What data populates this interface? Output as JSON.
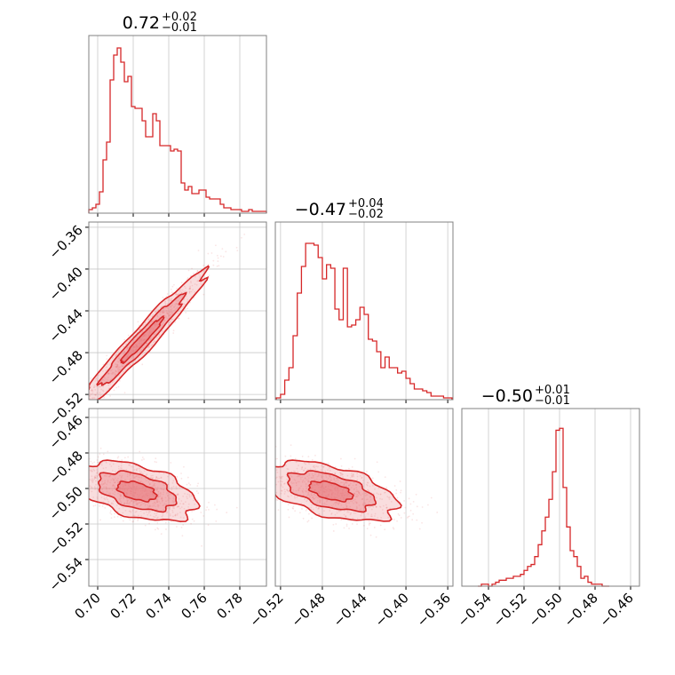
{
  "figure": {
    "background": "#ffffff"
  },
  "colors": {
    "series": "#d62728",
    "fill": "#e8767a",
    "grid": "#c8c8c8",
    "frame": "#808080"
  },
  "chart_data": [
    {
      "type": "histogram",
      "panel": "hist-p1",
      "title": {
        "base": "0.72",
        "upper": "+0.02",
        "lower": "−0.01"
      },
      "xlim": [
        0.695,
        0.795
      ],
      "xticks": [
        0.7,
        0.72,
        0.74,
        0.76,
        0.78
      ],
      "bins": [
        0.696,
        0.698,
        0.7,
        0.702,
        0.704,
        0.706,
        0.708,
        0.71,
        0.712,
        0.714,
        0.716,
        0.718,
        0.72,
        0.722,
        0.724,
        0.726,
        0.728,
        0.73,
        0.732,
        0.734,
        0.736,
        0.738,
        0.74,
        0.742,
        0.744,
        0.746,
        0.748,
        0.75,
        0.752,
        0.754,
        0.756,
        0.758,
        0.76,
        0.762,
        0.764,
        0.766,
        0.768,
        0.77,
        0.772,
        0.774,
        0.776,
        0.778,
        0.78,
        0.782,
        0.784,
        0.786,
        0.788,
        0.79,
        0.792,
        0.794
      ],
      "counts": [
        2,
        3,
        5,
        12,
        30,
        40,
        75,
        89,
        93,
        85,
        74,
        77,
        60,
        59,
        59,
        52,
        43,
        43,
        56,
        52,
        38,
        38,
        38,
        35,
        36,
        35,
        17,
        13,
        15,
        11,
        11,
        13,
        13,
        9,
        8,
        8,
        8,
        5,
        3,
        3,
        2,
        2,
        2,
        1,
        1,
        2,
        1,
        1,
        1,
        1
      ],
      "ylim": [
        0,
        100
      ]
    },
    {
      "type": "histogram",
      "panel": "hist-p2",
      "title": {
        "base": "−0.47",
        "upper": "+0.04",
        "lower": "−0.02"
      },
      "xlim": [
        -0.525,
        -0.355
      ],
      "xticks": [
        -0.52,
        -0.48,
        -0.44,
        -0.4,
        -0.36
      ],
      "bins": [
        -0.522,
        -0.518,
        -0.514,
        -0.51,
        -0.506,
        -0.502,
        -0.498,
        -0.494,
        -0.49,
        -0.486,
        -0.482,
        -0.478,
        -0.474,
        -0.47,
        -0.466,
        -0.462,
        -0.458,
        -0.454,
        -0.45,
        -0.446,
        -0.442,
        -0.438,
        -0.434,
        -0.43,
        -0.426,
        -0.422,
        -0.418,
        -0.414,
        -0.41,
        -0.406,
        -0.402,
        -0.398,
        -0.394,
        -0.39,
        -0.386,
        -0.382,
        -0.378,
        -0.374,
        -0.37,
        -0.366,
        -0.362,
        -0.358
      ],
      "counts": [
        1,
        3,
        11,
        18,
        36,
        60,
        75,
        88,
        88,
        87,
        80,
        68,
        76,
        74,
        51,
        45,
        74,
        41,
        42,
        45,
        52,
        48,
        34,
        33,
        27,
        18,
        24,
        18,
        18,
        15,
        16,
        12,
        9,
        6,
        6,
        5,
        4,
        2,
        2,
        2,
        1,
        1
      ],
      "ylim": [
        0,
        100
      ]
    },
    {
      "type": "histogram",
      "panel": "hist-p3",
      "title": {
        "base": "−0.50",
        "upper": "+0.01",
        "lower": "−0.01"
      },
      "xlim": [
        -0.555,
        -0.455
      ],
      "xticks": [
        -0.54,
        -0.52,
        -0.5,
        -0.48,
        -0.46
      ],
      "bins": [
        -0.545,
        -0.543,
        -0.541,
        -0.539,
        -0.537,
        -0.535,
        -0.533,
        -0.531,
        -0.529,
        -0.527,
        -0.525,
        -0.523,
        -0.521,
        -0.519,
        -0.517,
        -0.515,
        -0.513,
        -0.511,
        -0.509,
        -0.507,
        -0.505,
        -0.503,
        -0.501,
        -0.499,
        -0.497,
        -0.495,
        -0.493,
        -0.491,
        -0.489,
        -0.487,
        -0.485,
        -0.483,
        -0.481,
        -0.479,
        -0.477,
        -0.475,
        -0.473
      ],
      "counts": [
        0,
        1,
        1,
        0,
        1,
        2,
        3,
        3,
        4,
        4,
        5,
        5,
        6,
        8,
        10,
        11,
        15,
        21,
        28,
        35,
        44,
        58,
        79,
        80,
        50,
        30,
        18,
        15,
        10,
        4,
        5,
        2,
        1,
        1,
        1,
        0,
        0
      ],
      "ylim": [
        0,
        90
      ]
    },
    {
      "type": "contour",
      "panel": "p1-p2",
      "xlim": [
        0.695,
        0.795
      ],
      "ylim": [
        -0.525,
        -0.355
      ],
      "xticks": [
        0.7,
        0.72,
        0.74,
        0.76,
        0.78
      ],
      "yticks": [
        -0.36,
        -0.4,
        -0.44,
        -0.48,
        -0.52
      ],
      "density": {
        "mean": [
          0.725,
          -0.468
        ],
        "sd": [
          0.012,
          0.022
        ],
        "corr": 0.97
      },
      "contour_levels": [
        0.39,
        0.86,
        0.99
      ]
    },
    {
      "type": "contour",
      "panel": "p1-p3",
      "xlim": [
        0.695,
        0.795
      ],
      "ylim": [
        -0.555,
        -0.455
      ],
      "xticks": [
        0.7,
        0.72,
        0.74,
        0.76,
        0.78
      ],
      "yticks": [
        -0.46,
        -0.48,
        -0.5,
        -0.52,
        -0.54
      ],
      "density": {
        "mean": [
          0.722,
          -0.5015
        ],
        "sd": [
          0.011,
          0.0055
        ],
        "corr": -0.45
      },
      "contour_levels": [
        0.39,
        0.86,
        0.99
      ]
    },
    {
      "type": "contour",
      "panel": "p2-p3",
      "xlim": [
        -0.525,
        -0.355
      ],
      "ylim": [
        -0.555,
        -0.455
      ],
      "xticks": [
        -0.52,
        -0.48,
        -0.44,
        -0.4,
        -0.36
      ],
      "density": {
        "mean": [
          -0.472,
          -0.5015
        ],
        "sd": [
          0.021,
          0.0055
        ],
        "corr": -0.5
      },
      "contour_levels": [
        0.39,
        0.86,
        0.99
      ]
    }
  ]
}
